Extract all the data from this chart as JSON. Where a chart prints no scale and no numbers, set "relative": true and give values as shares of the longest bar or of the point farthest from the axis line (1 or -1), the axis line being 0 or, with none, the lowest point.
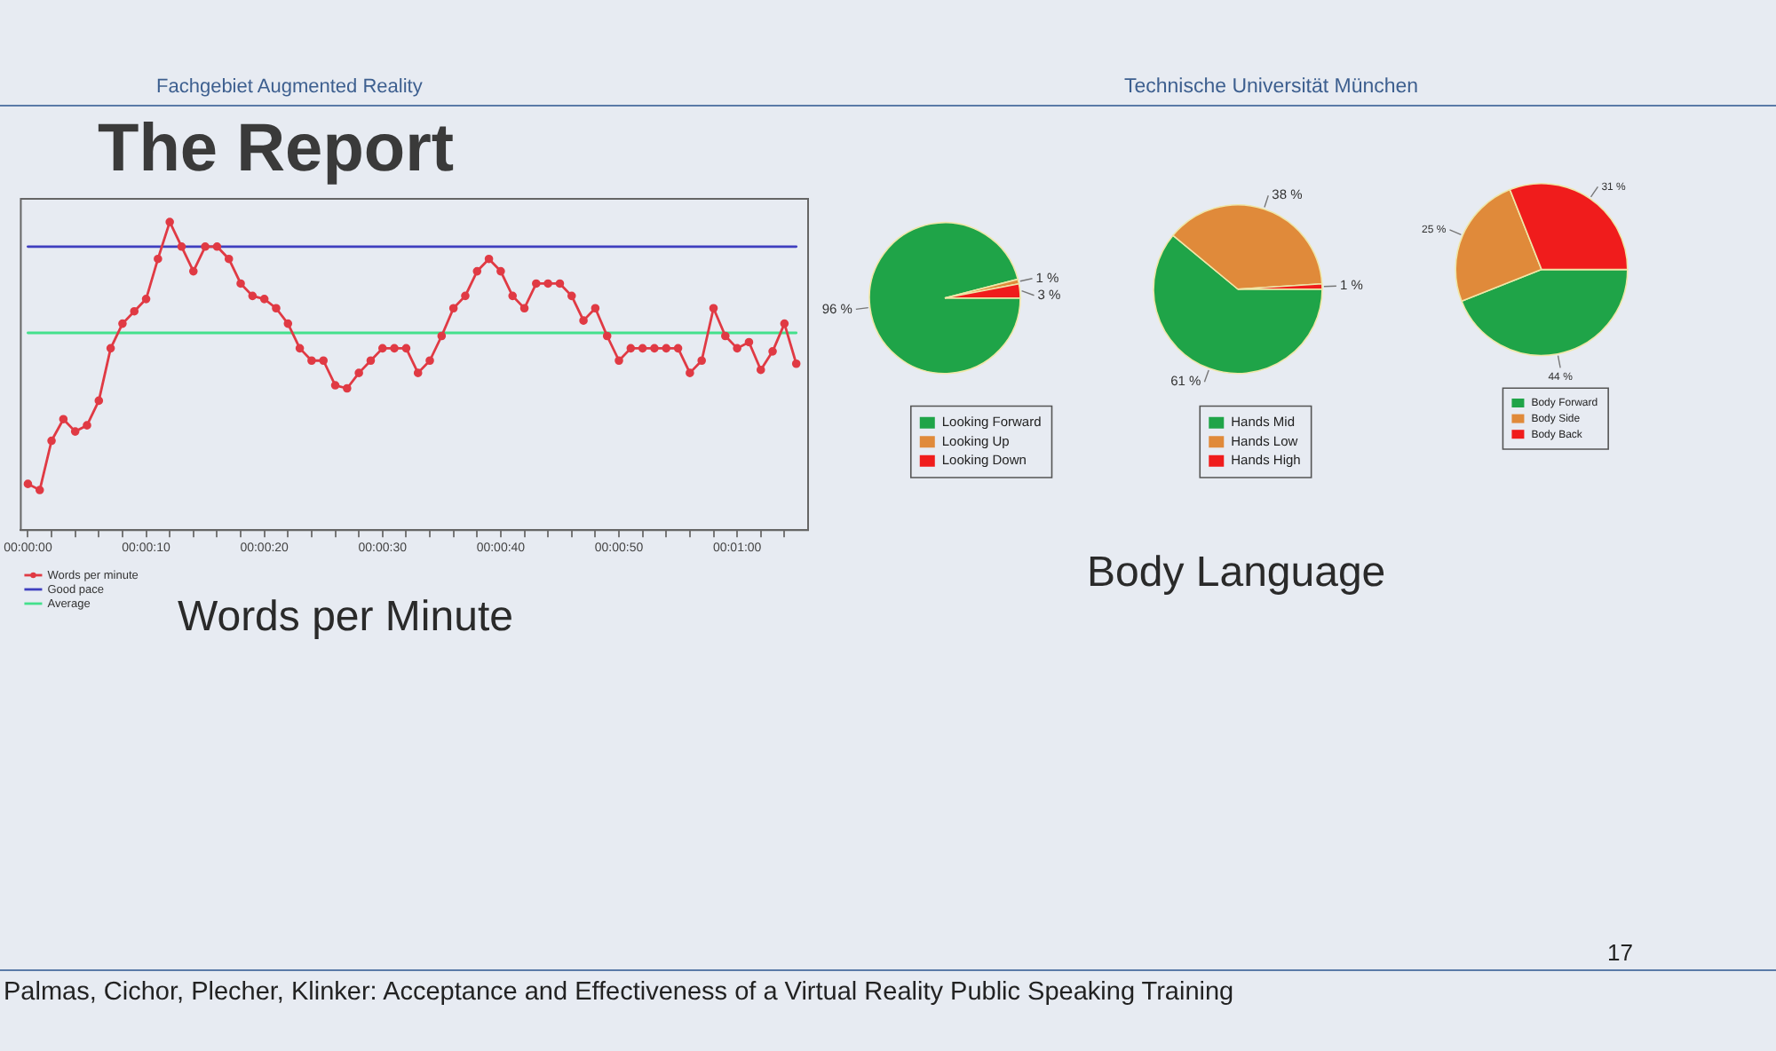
{
  "chart_data": [
    {
      "type": "line",
      "title": "Words per Minute",
      "annotations": [
        "Fachgebiet Augmented Reality",
        "Technische Universität München",
        "The Report",
        "Palmas, Cichor, Plecher, Klinker: Acceptance and Effectiveness of a Virtual Reality Public Speaking Training",
        "17"
      ],
      "relative": true,
      "x": [
        0,
        1,
        2,
        3,
        4,
        5,
        6,
        7,
        8,
        9,
        10,
        11,
        12,
        13,
        14,
        15,
        16,
        17,
        18,
        19,
        20,
        21,
        22,
        23,
        24,
        25,
        26,
        27,
        28,
        29,
        30,
        31,
        32,
        33,
        34,
        35,
        36,
        37,
        38,
        39,
        40,
        41,
        42,
        43,
        44,
        45,
        46,
        47,
        48,
        49,
        50,
        51,
        52,
        53,
        54,
        55,
        56,
        57,
        58,
        59,
        60,
        61,
        62,
        63,
        64,
        65
      ],
      "xlim": [
        -0.6,
        66
      ],
      "xticks": [
        {
          "value": 0,
          "label": "00:00:00"
        },
        {
          "value": 2,
          "label": null
        },
        {
          "value": 4,
          "label": null
        },
        {
          "value": 6,
          "label": null
        },
        {
          "value": 8,
          "label": null
        },
        {
          "value": 10,
          "label": "00:00:10"
        },
        {
          "value": 12,
          "label": null
        },
        {
          "value": 14,
          "label": null
        },
        {
          "value": 16,
          "label": null
        },
        {
          "value": 18,
          "label": null
        },
        {
          "value": 20,
          "label": "00:00:20"
        },
        {
          "value": 22,
          "label": null
        },
        {
          "value": 24,
          "label": null
        },
        {
          "value": 26,
          "label": null
        },
        {
          "value": 28,
          "label": null
        },
        {
          "value": 30,
          "label": "00:00:30"
        },
        {
          "value": 32,
          "label": null
        },
        {
          "value": 34,
          "label": null
        },
        {
          "value": 36,
          "label": null
        },
        {
          "value": 38,
          "label": null
        },
        {
          "value": 40,
          "label": "00:00:40"
        },
        {
          "value": 42,
          "label": null
        },
        {
          "value": 44,
          "label": null
        },
        {
          "value": 46,
          "label": null
        },
        {
          "value": 48,
          "label": null
        },
        {
          "value": 50,
          "label": "00:00:50"
        },
        {
          "value": 52,
          "label": null
        },
        {
          "value": 54,
          "label": null
        },
        {
          "value": 56,
          "label": null
        },
        {
          "value": 58,
          "label": null
        },
        {
          "value": 60,
          "label": "00:01:00"
        },
        {
          "value": 62,
          "label": null
        },
        {
          "value": 64,
          "label": null
        }
      ],
      "legend": "bottom left",
      "series": [
        {
          "name": "Words per minute",
          "color": "#e03a44",
          "marker": "circle",
          "values": [
            0.15,
            0.13,
            0.29,
            0.36,
            0.32,
            0.34,
            0.42,
            0.59,
            0.67,
            0.71,
            0.75,
            0.88,
            1,
            0.92,
            0.84,
            0.92,
            0.92,
            0.88,
            0.8,
            0.76,
            0.75,
            0.72,
            0.67,
            0.59,
            0.55,
            0.55,
            0.47,
            0.46,
            0.51,
            0.55,
            0.59,
            0.59,
            0.59,
            0.51,
            0.55,
            0.63,
            0.72,
            0.76,
            0.84,
            0.88,
            0.84,
            0.76,
            0.72,
            0.8,
            0.8,
            0.8,
            0.76,
            0.68,
            0.72,
            0.63,
            0.55,
            0.59,
            0.59,
            0.59,
            0.59,
            0.59,
            0.51,
            0.55,
            0.72,
            0.63,
            0.59,
            0.61,
            0.52,
            0.58,
            0.67,
            0.54
          ]
        },
        {
          "name": "Good pace",
          "color": "#3f3fbf",
          "values": [
            0.92,
            0.92,
            0.92,
            0.92,
            0.92,
            0.92,
            0.92,
            0.92,
            0.92,
            0.92,
            0.92,
            0.92,
            0.92,
            0.92,
            0.92,
            0.92,
            0.92,
            0.92,
            0.92,
            0.92,
            0.92,
            0.92,
            0.92,
            0.92,
            0.92,
            0.92,
            0.92,
            0.92,
            0.92,
            0.92,
            0.92,
            0.92,
            0.92,
            0.92,
            0.92,
            0.92,
            0.92,
            0.92,
            0.92,
            0.92,
            0.92,
            0.92,
            0.92,
            0.92,
            0.92,
            0.92,
            0.92,
            0.92,
            0.92,
            0.92,
            0.92,
            0.92,
            0.92,
            0.92,
            0.92,
            0.92,
            0.92,
            0.92,
            0.92,
            0.92,
            0.92,
            0.92,
            0.92,
            0.92,
            0.92,
            0.92
          ]
        },
        {
          "name": "Average",
          "color": "#44e08c",
          "values": [
            0.64,
            0.64,
            0.64,
            0.64,
            0.64,
            0.64,
            0.64,
            0.64,
            0.64,
            0.64,
            0.64,
            0.64,
            0.64,
            0.64,
            0.64,
            0.64,
            0.64,
            0.64,
            0.64,
            0.64,
            0.64,
            0.64,
            0.64,
            0.64,
            0.64,
            0.64,
            0.64,
            0.64,
            0.64,
            0.64,
            0.64,
            0.64,
            0.64,
            0.64,
            0.64,
            0.64,
            0.64,
            0.64,
            0.64,
            0.64,
            0.64,
            0.64,
            0.64,
            0.64,
            0.64,
            0.64,
            0.64,
            0.64,
            0.64,
            0.64,
            0.64,
            0.64,
            0.64,
            0.64,
            0.64,
            0.64,
            0.64,
            0.64,
            0.64,
            0.64,
            0.64,
            0.64,
            0.64,
            0.64,
            0.64,
            0.64
          ]
        }
      ]
    },
    {
      "type": "pie",
      "categories": [
        "Looking Forward",
        "Looking Up",
        "Looking Down"
      ],
      "values": [
        96,
        1,
        3
      ],
      "colors": [
        "#1fa448",
        "#e08a3a",
        "#f01c1c"
      ],
      "value_labels": [
        "96 %",
        "1 %",
        "3 %"
      ],
      "legend": "bottom"
    },
    {
      "type": "pie",
      "title": "Body Language",
      "categories": [
        "Hands Mid",
        "Hands Low",
        "Hands High"
      ],
      "values": [
        61,
        38,
        1
      ],
      "colors": [
        "#1fa448",
        "#e08a3a",
        "#f01c1c"
      ],
      "value_labels": [
        "61 %",
        "38 %",
        "1 %"
      ],
      "legend": "bottom"
    },
    {
      "type": "pie",
      "categories": [
        "Body Forward",
        "Body Side",
        "Body Back"
      ],
      "values": [
        44,
        25,
        31
      ],
      "colors": [
        "#1fa448",
        "#e08a3a",
        "#f01c1c"
      ],
      "value_labels": [
        "44 %",
        "25 %",
        "31 %"
      ],
      "legend": "bottom"
    }
  ]
}
